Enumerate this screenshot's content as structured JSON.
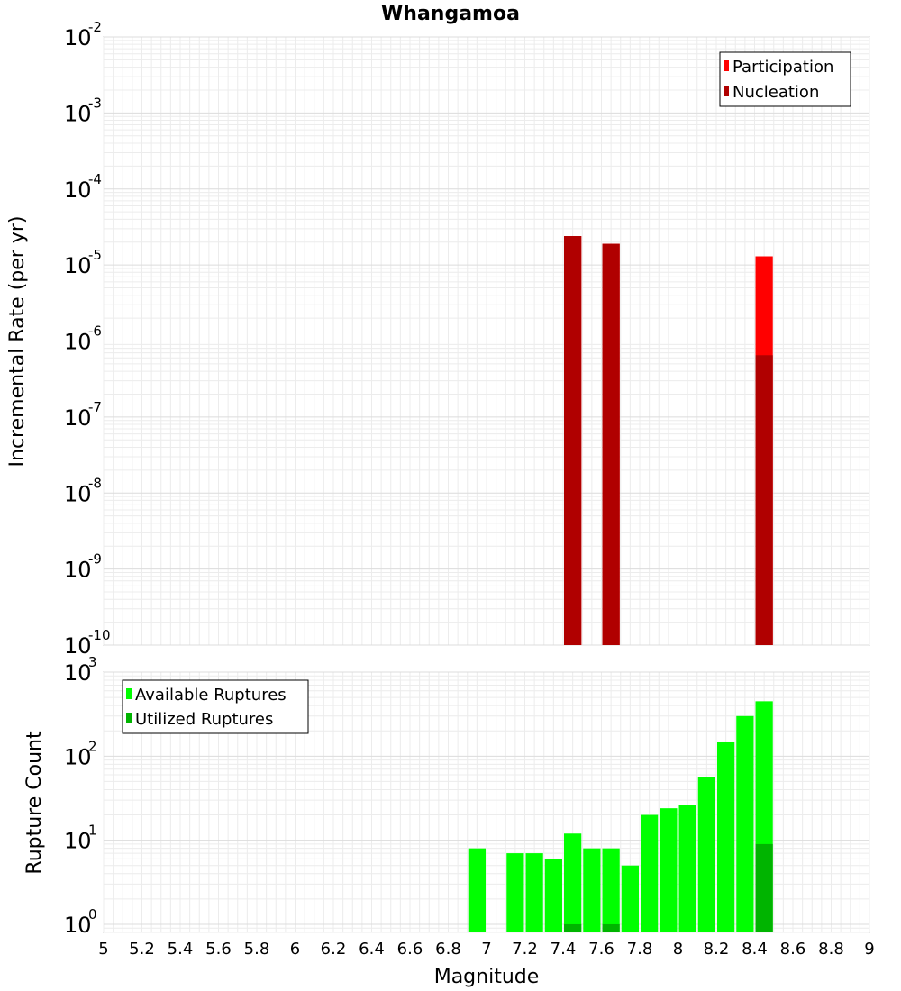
{
  "chart_data": [
    {
      "type": "bar",
      "title": "Whangamoa",
      "xlabel": "",
      "ylabel": "Incremental Rate (per yr)",
      "xlim": [
        5,
        9
      ],
      "ylim": [
        1e-10,
        0.01
      ],
      "y_scale": "log",
      "bin_width": 0.1,
      "grid": true,
      "legend_position": "top-right",
      "y_ticks": [
        {
          "base": "10",
          "exp": "-10",
          "value": 1e-10
        },
        {
          "base": "10",
          "exp": "-9",
          "value": 1e-09
        },
        {
          "base": "10",
          "exp": "-8",
          "value": 1e-08
        },
        {
          "base": "10",
          "exp": "-7",
          "value": 1e-07
        },
        {
          "base": "10",
          "exp": "-6",
          "value": 1e-06
        },
        {
          "base": "10",
          "exp": "-5",
          "value": 1e-05
        },
        {
          "base": "10",
          "exp": "-4",
          "value": 0.0001
        },
        {
          "base": "10",
          "exp": "-3",
          "value": 0.001
        },
        {
          "base": "10",
          "exp": "-2",
          "value": 0.01
        }
      ],
      "series": [
        {
          "name": "Participation",
          "color": "#ff0000",
          "x": [
            7.45,
            7.65,
            8.45
          ],
          "values": [
            2.4e-05,
            1.9e-05,
            1.3e-05
          ]
        },
        {
          "name": "Nucleation",
          "color": "#b00000",
          "x": [
            7.45,
            7.65,
            8.45
          ],
          "values": [
            2.4e-05,
            1.9e-05,
            6.5e-07
          ]
        }
      ]
    },
    {
      "type": "bar",
      "title": "",
      "xlabel": "Magnitude",
      "ylabel": "Rupture Count",
      "xlim": [
        5,
        9
      ],
      "ylim": [
        0.8,
        1000
      ],
      "y_scale": "log",
      "bin_width": 0.1,
      "grid": true,
      "legend_position": "top-left",
      "x_ticks": [
        "5",
        "5.2",
        "5.4",
        "5.6",
        "5.8",
        "6",
        "6.2",
        "6.4",
        "6.6",
        "6.8",
        "7",
        "7.2",
        "7.4",
        "7.6",
        "7.8",
        "8",
        "8.2",
        "8.4",
        "8.6",
        "8.8",
        "9"
      ],
      "y_ticks": [
        {
          "base": "10",
          "exp": "0",
          "value": 1
        },
        {
          "base": "10",
          "exp": "1",
          "value": 10
        },
        {
          "base": "10",
          "exp": "2",
          "value": 100
        },
        {
          "base": "10",
          "exp": "3",
          "value": 1000
        }
      ],
      "series": [
        {
          "name": "Available Ruptures",
          "color": "#00ff00",
          "x": [
            6.95,
            7.15,
            7.25,
            7.35,
            7.45,
            7.55,
            7.65,
            7.75,
            7.85,
            7.95,
            8.05,
            8.15,
            8.25,
            8.35,
            8.45
          ],
          "values": [
            8,
            7,
            7,
            6,
            12,
            8,
            8,
            5,
            20,
            24,
            26,
            57,
            146,
            300,
            450
          ]
        },
        {
          "name": "Utilized Ruptures",
          "color": "#00b400",
          "x": [
            7.45,
            7.65,
            8.45
          ],
          "values": [
            1,
            1,
            9
          ]
        }
      ]
    }
  ]
}
